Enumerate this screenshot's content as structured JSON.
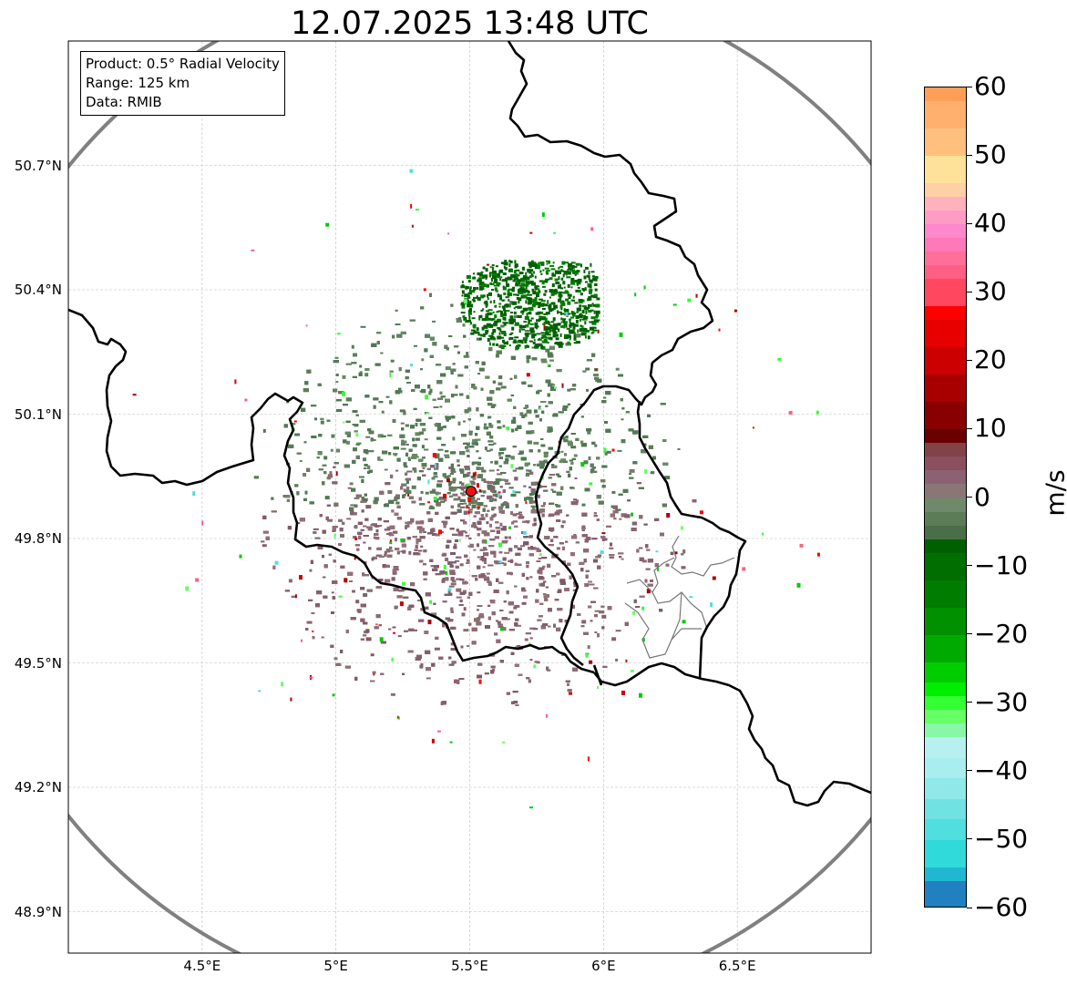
{
  "title": "12.07.2025 13:48 UTC",
  "info": {
    "product": "Product: 0.5° Radial Velocity",
    "range": "Range: 125 km",
    "data": "Data: RMIB"
  },
  "map": {
    "lon_range": [
      4.0,
      7.0
    ],
    "lat_range": [
      48.8,
      51.0
    ],
    "radar_site": {
      "lon": 5.505,
      "lat": 49.914
    },
    "range_km": 125,
    "x_ticks": [
      {
        "value": 4.5,
        "label": "4.5°E"
      },
      {
        "value": 5.0,
        "label": "5°E"
      },
      {
        "value": 5.5,
        "label": "5.5°E"
      },
      {
        "value": 6.0,
        "label": "6°E"
      },
      {
        "value": 6.5,
        "label": "6.5°E"
      }
    ],
    "y_ticks": [
      {
        "value": 48.9,
        "label": "48.9°N"
      },
      {
        "value": 49.2,
        "label": "49.2°N"
      },
      {
        "value": 49.5,
        "label": "49.5°N"
      },
      {
        "value": 49.8,
        "label": "49.8°N"
      },
      {
        "value": 50.1,
        "label": "50.1°N"
      },
      {
        "value": 50.4,
        "label": "50.4°N"
      },
      {
        "value": 50.7,
        "label": "50.7°N"
      }
    ],
    "colors": {
      "border": "#000000",
      "range_ring": "#808080",
      "subregion": "#777777",
      "radar_marker": "#ee1111"
    }
  },
  "colorbar": {
    "unit": "m/s",
    "vmin": -60,
    "vmax": 60,
    "ticks": [
      {
        "value": 60,
        "label": "60"
      },
      {
        "value": 50,
        "label": "50"
      },
      {
        "value": 40,
        "label": "40"
      },
      {
        "value": 30,
        "label": "30"
      },
      {
        "value": 20,
        "label": "20"
      },
      {
        "value": 10,
        "label": "10"
      },
      {
        "value": 0,
        "label": "0"
      },
      {
        "value": -10,
        "label": "−10"
      },
      {
        "value": -20,
        "label": "−20"
      },
      {
        "value": -30,
        "label": "−30"
      },
      {
        "value": -40,
        "label": "−40"
      },
      {
        "value": -50,
        "label": "−50"
      },
      {
        "value": -60,
        "label": "−60"
      }
    ],
    "stops": [
      {
        "from": 58,
        "to": 60,
        "color": "#ff9f55"
      },
      {
        "from": 54,
        "to": 58,
        "color": "#ffb06e"
      },
      {
        "from": 50,
        "to": 54,
        "color": "#ffc07e"
      },
      {
        "from": 46,
        "to": 50,
        "color": "#ffe29a"
      },
      {
        "from": 44,
        "to": 46,
        "color": "#ffd0a6"
      },
      {
        "from": 42,
        "to": 44,
        "color": "#ffb2be"
      },
      {
        "from": 40,
        "to": 42,
        "color": "#ff9cc4"
      },
      {
        "from": 38,
        "to": 40,
        "color": "#ff88cc"
      },
      {
        "from": 36,
        "to": 38,
        "color": "#ff78b8"
      },
      {
        "from": 34,
        "to": 36,
        "color": "#ff6f9a"
      },
      {
        "from": 32,
        "to": 34,
        "color": "#ff5f82"
      },
      {
        "from": 28,
        "to": 32,
        "color": "#ff4860"
      },
      {
        "from": 26,
        "to": 28,
        "color": "#ff0000"
      },
      {
        "from": 22,
        "to": 26,
        "color": "#e60000"
      },
      {
        "from": 18,
        "to": 22,
        "color": "#cc0000"
      },
      {
        "from": 14,
        "to": 18,
        "color": "#a80000"
      },
      {
        "from": 10,
        "to": 14,
        "color": "#880000"
      },
      {
        "from": 8,
        "to": 10,
        "color": "#6a0000"
      },
      {
        "from": 6,
        "to": 8,
        "color": "#824248"
      },
      {
        "from": 4,
        "to": 6,
        "color": "#8a5060"
      },
      {
        "from": 2,
        "to": 4,
        "color": "#8a6272"
      },
      {
        "from": 0,
        "to": 2,
        "color": "#8a7676"
      },
      {
        "from": -2,
        "to": 0,
        "color": "#6e8a6a"
      },
      {
        "from": -4,
        "to": -2,
        "color": "#5c7c58"
      },
      {
        "from": -6,
        "to": -4,
        "color": "#4a6e48"
      },
      {
        "from": -8,
        "to": -6,
        "color": "#006000"
      },
      {
        "from": -12,
        "to": -8,
        "color": "#006e00"
      },
      {
        "from": -16,
        "to": -12,
        "color": "#007c00"
      },
      {
        "from": -20,
        "to": -16,
        "color": "#009000"
      },
      {
        "from": -24,
        "to": -20,
        "color": "#00aa00"
      },
      {
        "from": -27,
        "to": -24,
        "color": "#00cc00"
      },
      {
        "from": -29,
        "to": -27,
        "color": "#00ee00"
      },
      {
        "from": -31,
        "to": -29,
        "color": "#33ff33"
      },
      {
        "from": -33,
        "to": -31,
        "color": "#66ff66"
      },
      {
        "from": -35,
        "to": -33,
        "color": "#88f8a8"
      },
      {
        "from": -38,
        "to": -35,
        "color": "#b8f0f0"
      },
      {
        "from": -41,
        "to": -38,
        "color": "#a8eeee"
      },
      {
        "from": -44,
        "to": -41,
        "color": "#90e8e8"
      },
      {
        "from": -47,
        "to": -44,
        "color": "#70e2e2"
      },
      {
        "from": -50,
        "to": -47,
        "color": "#50dede"
      },
      {
        "from": -54,
        "to": -50,
        "color": "#30dada"
      },
      {
        "from": -56,
        "to": -54,
        "color": "#20b8d0"
      },
      {
        "from": -60,
        "to": -56,
        "color": "#2080c0"
      }
    ]
  }
}
